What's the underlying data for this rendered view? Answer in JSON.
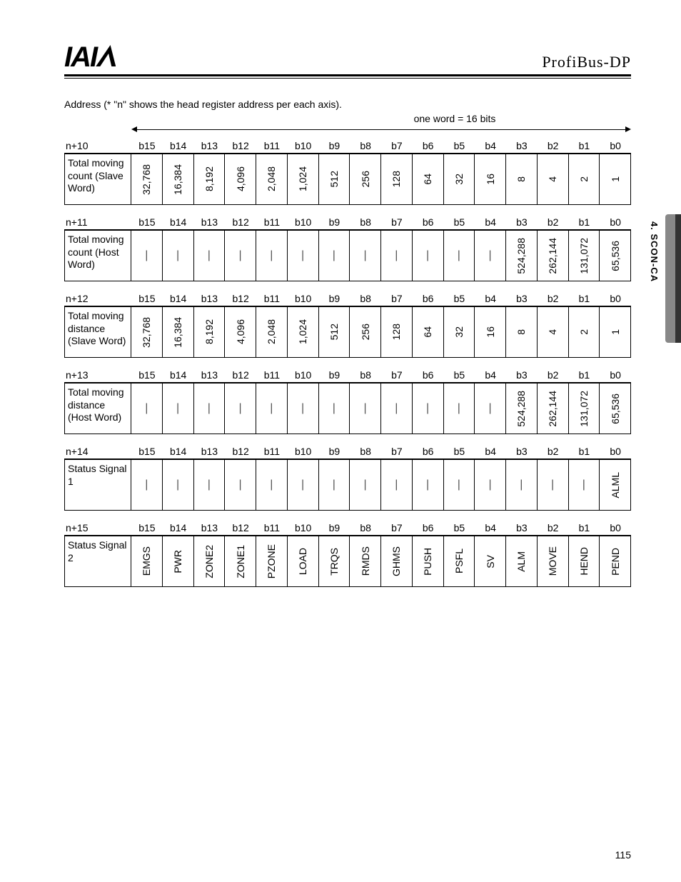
{
  "header": {
    "logo_text": "IAI",
    "brand": "ProfiBus-DP"
  },
  "side_section": "4. SCON-CA",
  "page_number": "115",
  "intro": "Address (* \"n\" shows the head register address per each axis).",
  "word_note": "one word = 16 bits",
  "bit_labels": [
    "b15",
    "b14",
    "b13",
    "b12",
    "b11",
    "b10",
    "b9",
    "b8",
    "b7",
    "b6",
    "b5",
    "b4",
    "b3",
    "b2",
    "b1",
    "b0"
  ],
  "rows": [
    {
      "addr": "n+10",
      "label": "Total moving count (Slave Word)",
      "values": [
        "32,768",
        "16,384",
        "8,192",
        "4,096",
        "2,048",
        "1,024",
        "512",
        "256",
        "128",
        "64",
        "32",
        "16",
        "8",
        "4",
        "2",
        "1"
      ]
    },
    {
      "addr": "n+11",
      "label": "Total moving count (Host Word)",
      "values": [
        "|",
        "|",
        "|",
        "|",
        "|",
        "|",
        "|",
        "|",
        "|",
        "|",
        "|",
        "|",
        "524,288",
        "262,144",
        "131,072",
        "65,536"
      ]
    },
    {
      "addr": "n+12",
      "label": "Total moving distance (Slave Word)",
      "values": [
        "32,768",
        "16,384",
        "8,192",
        "4,096",
        "2,048",
        "1,024",
        "512",
        "256",
        "128",
        "64",
        "32",
        "16",
        "8",
        "4",
        "2",
        "1"
      ]
    },
    {
      "addr": "n+13",
      "label": "Total moving distance (Host Word)",
      "values": [
        "|",
        "|",
        "|",
        "|",
        "|",
        "|",
        "|",
        "|",
        "|",
        "|",
        "|",
        "|",
        "524,288",
        "262,144",
        "131,072",
        "65,536"
      ]
    },
    {
      "addr": "n+14",
      "label": "Status Signal 1",
      "values": [
        "|",
        "|",
        "|",
        "|",
        "|",
        "|",
        "|",
        "|",
        "|",
        "|",
        "|",
        "|",
        "|",
        "|",
        "|",
        "ALML"
      ]
    },
    {
      "addr": "n+15",
      "label": "Status Signal 2",
      "values": [
        "EMGS",
        "PWR",
        "ZONE2",
        "ZONE1",
        "PZONE",
        "LOAD",
        "TRQS",
        "RMDS",
        "GHMS",
        "PUSH",
        "PSFL",
        "SV",
        "ALM",
        "MOVE",
        "HEND",
        "PEND"
      ]
    }
  ]
}
